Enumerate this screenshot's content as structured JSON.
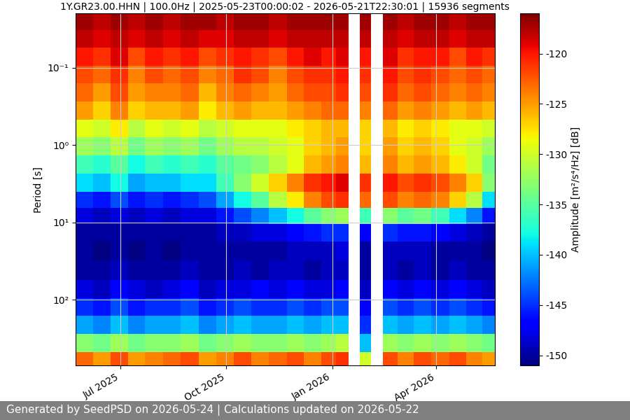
{
  "chart_data": {
    "type": "heatmap",
    "title": "1Y.GR23.00.HHN | 100.0Hz | 2025-05-23T00:00:02 - 2026-05-21T22:30:01 | 15936 segments",
    "ylabel": "Period [s]",
    "colorbar_label": "Amplitude [m²/s⁴/Hz] [dB]",
    "footer": "Generated by SeedPSD on 2026-05-24 | Calculations updated on 2026-05-22",
    "log": "y",
    "grid": true,
    "xlim": [
      "2025-05-23T00:00:02",
      "2026-05-21T22:30:01"
    ],
    "xticks": [
      {
        "value": "2025-07-01",
        "label": "Jul 2025"
      },
      {
        "value": "2025-10-01",
        "label": "Oct 2025"
      },
      {
        "value": "2026-01-01",
        "label": "Jan 2026"
      },
      {
        "value": "2026-04-01",
        "label": "Apr 2026"
      }
    ],
    "ylim": [
      700,
      0.02
    ],
    "yticks": [
      {
        "value": 0.1,
        "label": "10⁻¹"
      },
      {
        "value": 1,
        "label": "10⁰"
      },
      {
        "value": 10,
        "label": "10¹"
      },
      {
        "value": 100,
        "label": "10²"
      }
    ],
    "colorbar_lim": [
      -151,
      -116
    ],
    "colorbar_ticks": [
      -150,
      -145,
      -140,
      -135,
      -130,
      -125,
      -120
    ],
    "x": [
      "2025-05-30",
      "2025-06-15",
      "2025-06-30",
      "2025-07-15",
      "2025-07-30",
      "2025-08-15",
      "2025-08-30",
      "2025-09-15",
      "2025-09-30",
      "2025-10-15",
      "2025-10-30",
      "2025-11-15",
      "2025-11-30",
      "2025-12-15",
      "2025-12-30",
      "2026-01-10",
      "2026-01-20",
      "2026-01-30",
      "2026-02-08",
      "2026-02-20",
      "2026-03-05",
      "2026-03-20",
      "2026-04-05",
      "2026-04-20",
      "2026-05-05",
      "2026-05-17"
    ],
    "periods": [
      0.025,
      0.04,
      0.07,
      0.12,
      0.2,
      0.35,
      0.6,
      1.0,
      1.7,
      3,
      5,
      8,
      13,
      22,
      40,
      70,
      120,
      200,
      350,
      600
    ],
    "cells": [
      [
        -117,
        -118,
        -117,
        -118,
        -117,
        -118,
        -117,
        -117,
        -118,
        -117,
        -117,
        -118,
        -117,
        -117,
        -117,
        -117,
        null,
        -117,
        null,
        -117,
        -118,
        -117,
        -117,
        -118,
        -117,
        -117
      ],
      [
        -118,
        -119,
        -118,
        -119,
        -118,
        -119,
        -118,
        -119,
        -119,
        -118,
        -118,
        -119,
        -118,
        -118,
        -118,
        -118,
        null,
        -118,
        null,
        -118,
        -119,
        -118,
        -118,
        -119,
        -118,
        -118
      ],
      [
        -120,
        -121,
        -119,
        -122,
        -120,
        -121,
        -120,
        -122,
        -121,
        -120,
        -121,
        -122,
        -120,
        -119,
        -120,
        -119,
        null,
        -120,
        null,
        -119,
        -121,
        -120,
        -120,
        -122,
        -120,
        -121
      ],
      [
        -122,
        -123,
        -121,
        -124,
        -122,
        -123,
        -122,
        -124,
        -123,
        -121,
        -122,
        -124,
        -122,
        -121,
        -121,
        -120,
        null,
        -121,
        null,
        -120,
        -122,
        -121,
        -122,
        -123,
        -122,
        -123
      ],
      [
        -123,
        -125,
        -122,
        -125,
        -124,
        -124,
        -123,
        -126,
        -124,
        -123,
        -124,
        -125,
        -123,
        -122,
        -122,
        -121,
        null,
        -122,
        null,
        -121,
        -123,
        -122,
        -123,
        -124,
        -123,
        -124
      ],
      [
        -125,
        -127,
        -124,
        -127,
        -126,
        -126,
        -125,
        -128,
        -126,
        -125,
        -126,
        -126,
        -125,
        -124,
        -123,
        -123,
        null,
        -124,
        null,
        -123,
        -125,
        -124,
        -125,
        -126,
        -125,
        -126
      ],
      [
        -129,
        -130,
        -128,
        -131,
        -129,
        -130,
        -129,
        -131,
        -130,
        -129,
        -129,
        -129,
        -128,
        -127,
        -126,
        -126,
        null,
        -127,
        null,
        -126,
        -128,
        -127,
        -128,
        -129,
        -129,
        -130
      ],
      [
        -132,
        -133,
        -131,
        -134,
        -132,
        -133,
        -132,
        -134,
        -132,
        -131,
        -131,
        -130,
        -129,
        -127,
        -126,
        -125,
        null,
        -127,
        null,
        -125,
        -127,
        -126,
        -127,
        -129,
        -130,
        -132
      ],
      [
        -136,
        -137,
        -135,
        -138,
        -136,
        -137,
        -136,
        -137,
        -135,
        -134,
        -133,
        -131,
        -129,
        -126,
        -125,
        -124,
        null,
        -126,
        null,
        -124,
        -126,
        -125,
        -126,
        -128,
        -130,
        -134
      ],
      [
        -139,
        -140,
        -138,
        -141,
        -140,
        -140,
        -139,
        -139,
        -136,
        -133,
        -130,
        -127,
        -124,
        -121,
        -120,
        -119,
        null,
        -121,
        null,
        -120,
        -122,
        -121,
        -122,
        -124,
        -127,
        -133
      ],
      [
        -145,
        -146,
        -144,
        -146,
        -145,
        -146,
        -145,
        -144,
        -141,
        -138,
        -135,
        -131,
        -128,
        -124,
        -122,
        -121,
        null,
        -123,
        null,
        -122,
        -124,
        -123,
        -124,
        -127,
        -131,
        -139
      ],
      [
        -148,
        -149,
        -148,
        -149,
        -148,
        -149,
        -148,
        -148,
        -146,
        -144,
        -142,
        -140,
        -138,
        -135,
        -133,
        -132,
        null,
        -136,
        null,
        -133,
        -135,
        -134,
        -136,
        -139,
        -142,
        -146
      ],
      [
        -150,
        -150,
        -150,
        -150,
        -150,
        -150,
        -150,
        -150,
        -149,
        -149,
        -148,
        -148,
        -147,
        -146,
        -145,
        -145,
        null,
        -147,
        null,
        -145,
        -146,
        -146,
        -147,
        -148,
        -149,
        -150
      ],
      [
        -150,
        -151,
        -150,
        -151,
        -150,
        -151,
        -150,
        -150,
        -150,
        -150,
        -150,
        -150,
        -149,
        -149,
        -149,
        -148,
        null,
        -150,
        null,
        -149,
        -149,
        -149,
        -150,
        -150,
        -150,
        -151
      ],
      [
        -150,
        -150,
        -149,
        -150,
        -150,
        -150,
        -149,
        -150,
        -150,
        -149,
        -150,
        -149,
        -149,
        -150,
        -149,
        -149,
        null,
        -150,
        null,
        -149,
        -150,
        -149,
        -150,
        -149,
        -150,
        -150
      ],
      [
        -148,
        -149,
        -147,
        -148,
        -149,
        -148,
        -147,
        -149,
        -148,
        -148,
        -147,
        -148,
        -147,
        -148,
        -148,
        -147,
        null,
        -149,
        null,
        -147,
        -148,
        -147,
        -148,
        -147,
        -148,
        -149
      ],
      [
        -145,
        -146,
        -144,
        -146,
        -145,
        -145,
        -144,
        -146,
        -145,
        -144,
        -145,
        -145,
        -144,
        -145,
        -144,
        -144,
        null,
        -147,
        null,
        -144,
        -145,
        -144,
        -145,
        -144,
        -145,
        -146
      ],
      [
        -141,
        -142,
        -140,
        -142,
        -141,
        -141,
        -140,
        -142,
        -141,
        -140,
        -141,
        -141,
        -140,
        -141,
        -140,
        -140,
        null,
        -145,
        null,
        -140,
        -141,
        -140,
        -141,
        -140,
        -141,
        -142
      ],
      [
        -133,
        -134,
        -132,
        -134,
        -133,
        -133,
        -132,
        -134,
        -133,
        -132,
        -133,
        -133,
        -132,
        -133,
        -132,
        -131,
        null,
        -140,
        null,
        -132,
        -133,
        -132,
        -133,
        -132,
        -133,
        -134
      ],
      [
        -123,
        -125,
        -122,
        -125,
        -124,
        -123,
        -122,
        -125,
        -124,
        -122,
        -124,
        -123,
        -122,
        -124,
        -122,
        -121,
        null,
        -130,
        null,
        -122,
        -124,
        -122,
        -123,
        -122,
        -124,
        -125
      ]
    ]
  }
}
